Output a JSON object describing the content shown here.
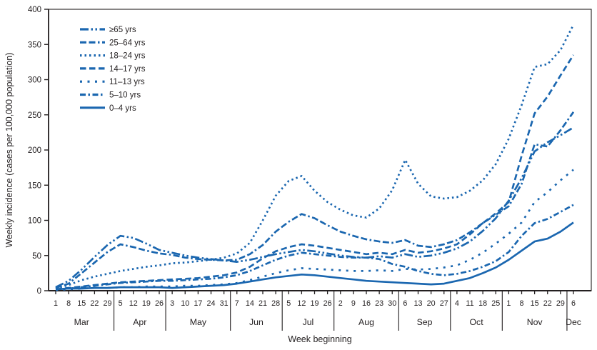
{
  "figure": {
    "axis_color": "#231f20",
    "background": "#ffffff"
  },
  "chart_data": {
    "type": "line",
    "title": "",
    "ylabel": "Weekly incidence (cases per 100,000 population)",
    "xlabel": "Week beginning",
    "ylim": [
      0,
      400
    ],
    "y_ticks": [
      0,
      50,
      100,
      150,
      200,
      250,
      300,
      350,
      400
    ],
    "grid": false,
    "legend_position": "top-left",
    "line_color": "#1b67b0",
    "months": [
      {
        "label": "Mar",
        "dates": [
          1,
          8,
          15,
          22,
          29
        ]
      },
      {
        "label": "Apr",
        "dates": [
          5,
          12,
          19,
          26
        ]
      },
      {
        "label": "May",
        "dates": [
          3,
          10,
          17,
          24,
          31
        ]
      },
      {
        "label": "Jun",
        "dates": [
          7,
          14,
          21,
          28
        ]
      },
      {
        "label": "Jul",
        "dates": [
          5,
          12,
          19,
          26
        ]
      },
      {
        "label": "Aug",
        "dates": [
          2,
          9,
          16,
          23,
          30
        ]
      },
      {
        "label": "Sep",
        "dates": [
          6,
          13,
          20,
          27
        ]
      },
      {
        "label": "Oct",
        "dates": [
          4,
          11,
          18,
          25
        ]
      },
      {
        "label": "Nov",
        "dates": [
          1,
          8,
          15,
          22,
          29
        ]
      },
      {
        "label": "Dec",
        "dates": [
          6
        ]
      }
    ],
    "series": [
      {
        "name": "≥65 yrs",
        "dash": "dash-dot-dot",
        "values": [
          5,
          14,
          30,
          48,
          65,
          78,
          75,
          67,
          58,
          54,
          50,
          47,
          45,
          43,
          41,
          44,
          48,
          52,
          55,
          58,
          56,
          53,
          50,
          48,
          47,
          49,
          47,
          52,
          48,
          50,
          54,
          60,
          70,
          85,
          103,
          128,
          160,
          198,
          211,
          221,
          232
        ]
      },
      {
        "name": "25–64 yrs",
        "dash": "dash-dash-dot",
        "values": [
          4,
          10,
          25,
          40,
          55,
          66,
          62,
          57,
          53,
          51,
          47,
          45,
          44,
          43,
          44,
          52,
          65,
          84,
          98,
          109,
          103,
          93,
          84,
          78,
          73,
          70,
          68,
          72,
          64,
          62,
          66,
          72,
          83,
          96,
          108,
          120,
          152,
          208,
          205,
          228,
          254
        ]
      },
      {
        "name": "18–24 yrs",
        "dash": "dotted",
        "values": [
          3,
          8,
          15,
          20,
          24,
          28,
          31,
          34,
          36,
          39,
          40,
          42,
          44,
          47,
          53,
          68,
          100,
          135,
          156,
          163,
          142,
          126,
          115,
          107,
          104,
          117,
          143,
          186,
          152,
          134,
          131,
          133,
          142,
          157,
          180,
          216,
          264,
          318,
          322,
          342,
          378
        ]
      },
      {
        "name": "14–17 yrs",
        "dash": "dashed",
        "values": [
          2,
          4,
          6,
          8,
          10,
          12,
          13,
          14,
          15,
          16,
          17,
          18,
          20,
          22,
          26,
          34,
          46,
          56,
          62,
          66,
          64,
          61,
          58,
          55,
          52,
          54,
          52,
          58,
          54,
          56,
          60,
          66,
          80,
          96,
          110,
          126,
          192,
          252,
          276,
          306,
          335
        ]
      },
      {
        "name": "11–13 yrs",
        "dash": "sparse-dash",
        "values": [
          1,
          2,
          3,
          4,
          4,
          5,
          5,
          6,
          6,
          6,
          7,
          7,
          8,
          9,
          11,
          15,
          20,
          25,
          29,
          32,
          31,
          30,
          29,
          28,
          28,
          29,
          28,
          31,
          30,
          31,
          33,
          36,
          44,
          54,
          67,
          81,
          97,
          126,
          140,
          157,
          172
        ]
      },
      {
        "name": "5–10 yrs",
        "dash": "dash-dot",
        "values": [
          2,
          3,
          5,
          7,
          9,
          11,
          12,
          13,
          14,
          14,
          15,
          16,
          17,
          19,
          22,
          28,
          36,
          44,
          50,
          54,
          52,
          50,
          48,
          47,
          47,
          45,
          38,
          34,
          28,
          24,
          22,
          24,
          28,
          34,
          42,
          55,
          78,
          96,
          102,
          112,
          122
        ]
      },
      {
        "name": "0–4 yrs",
        "dash": "solid",
        "values": [
          2,
          3,
          3,
          4,
          4,
          5,
          5,
          5,
          5,
          4,
          5,
          6,
          7,
          8,
          10,
          13,
          16,
          19,
          21,
          23,
          22,
          20,
          18,
          16,
          14,
          13,
          12,
          11,
          10,
          9,
          10,
          14,
          18,
          25,
          33,
          44,
          57,
          70,
          74,
          84,
          97
        ]
      }
    ]
  }
}
